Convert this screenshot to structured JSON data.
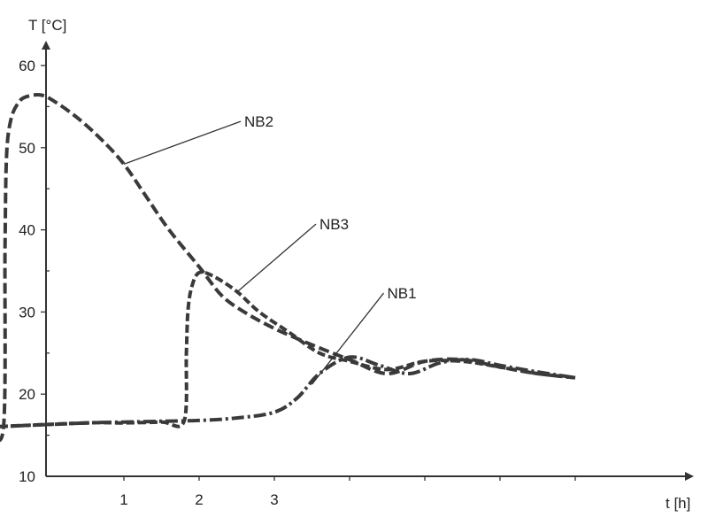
{
  "chart_data": {
    "type": "line",
    "title": "",
    "xlabel": "t [h]",
    "ylabel": "T [°C]",
    "xlim": [
      -1,
      7.5
    ],
    "ylim": [
      10,
      60
    ],
    "x_ticks": [
      1,
      2,
      3
    ],
    "x_minor_ticks": [
      1,
      2,
      3,
      4,
      5,
      6,
      7
    ],
    "y_ticks": [
      10,
      20,
      30,
      40,
      50,
      60
    ],
    "grid": false,
    "legend": "none",
    "series": [
      {
        "name": "NB2",
        "dash": "12 5",
        "x": [
          -0.8,
          -0.6,
          -0.58,
          -0.56,
          -0.5,
          -0.4,
          -0.3,
          -0.1,
          0.1,
          0.4,
          0.7,
          1.0,
          1.3,
          1.6,
          2.0,
          2.3,
          2.6,
          3.0,
          3.5,
          4.0,
          4.5,
          5.0,
          5.5,
          6.0,
          6.5,
          7.0
        ],
        "y": [
          16,
          16,
          38,
          49,
          53.5,
          55.5,
          56.2,
          56.4,
          55.5,
          53.5,
          51,
          48,
          44,
          40,
          35.5,
          32,
          30,
          28,
          26,
          24.2,
          22.5,
          24,
          24.2,
          23.3,
          22.5,
          22
        ]
      },
      {
        "name": "NB3",
        "dash": "9 4",
        "x": [
          -0.8,
          0.5,
          1.0,
          1.5,
          1.8,
          1.83,
          1.85,
          1.9,
          2.0,
          2.2,
          2.5,
          2.8,
          3.2,
          3.6,
          4.0,
          4.5,
          5.0,
          5.5,
          6.0,
          6.5,
          7.0
        ],
        "y": [
          16,
          16.5,
          16.5,
          16.6,
          16.7,
          25,
          30,
          33,
          34.8,
          34.3,
          32.5,
          30,
          27.5,
          25,
          24,
          23,
          24,
          24,
          23.3,
          22.5,
          22
        ]
      },
      {
        "name": "NB1",
        "dash": "14 4 3 4",
        "x": [
          -0.8,
          0,
          0.5,
          1,
          1.5,
          2,
          2.5,
          3,
          3.3,
          3.6,
          4.0,
          4.4,
          4.8,
          5.2,
          5.6,
          6.0,
          6.5,
          7.0
        ],
        "y": [
          16,
          16.3,
          16.5,
          16.6,
          16.7,
          16.8,
          17.1,
          17.8,
          19.5,
          22.5,
          24.5,
          23.5,
          22.5,
          23.8,
          24.2,
          23.5,
          22.7,
          22
        ]
      }
    ],
    "annotations": [
      {
        "text": "NB2",
        "target_series": "NB2",
        "target_x": 1.0,
        "target_y": 48,
        "label_x": 2.6,
        "label_y": 53.2
      },
      {
        "text": "NB3",
        "target_series": "NB3",
        "target_x": 2.5,
        "target_y": 32.4,
        "label_x": 3.6,
        "label_y": 40.7
      },
      {
        "text": "NB1",
        "target_series": "NB1",
        "target_x": 3.5,
        "target_y": 21.2,
        "label_x": 4.5,
        "label_y": 32.3
      }
    ]
  }
}
